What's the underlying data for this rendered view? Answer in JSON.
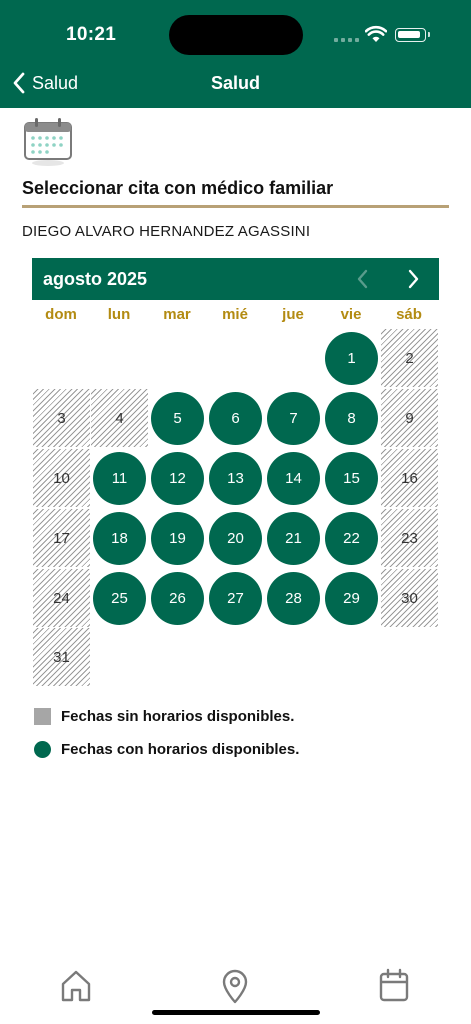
{
  "status_bar": {
    "time": "10:21"
  },
  "nav": {
    "back_label": "Salud",
    "title": "Salud"
  },
  "page": {
    "title": "Seleccionar cita con médico familiar",
    "patient_name": "DIEGO ALVARO HERNANDEZ AGASSINI"
  },
  "calendar": {
    "month_label": "agosto 2025",
    "weekdays": [
      "dom",
      "lun",
      "mar",
      "mié",
      "jue",
      "vie",
      "sáb"
    ],
    "days": [
      {
        "d": "1",
        "available": true
      },
      {
        "d": "2",
        "available": false
      },
      {
        "d": "3",
        "available": false
      },
      {
        "d": "4",
        "available": false
      },
      {
        "d": "5",
        "available": true
      },
      {
        "d": "6",
        "available": true
      },
      {
        "d": "7",
        "available": true
      },
      {
        "d": "8",
        "available": true
      },
      {
        "d": "9",
        "available": false
      },
      {
        "d": "10",
        "available": false
      },
      {
        "d": "11",
        "available": true
      },
      {
        "d": "12",
        "available": true
      },
      {
        "d": "13",
        "available": true
      },
      {
        "d": "14",
        "available": true
      },
      {
        "d": "15",
        "available": true
      },
      {
        "d": "16",
        "available": false
      },
      {
        "d": "17",
        "available": false
      },
      {
        "d": "18",
        "available": true
      },
      {
        "d": "19",
        "available": true
      },
      {
        "d": "20",
        "available": true
      },
      {
        "d": "21",
        "available": true
      },
      {
        "d": "22",
        "available": true
      },
      {
        "d": "23",
        "available": false
      },
      {
        "d": "24",
        "available": false
      },
      {
        "d": "25",
        "available": true
      },
      {
        "d": "26",
        "available": true
      },
      {
        "d": "27",
        "available": true
      },
      {
        "d": "28",
        "available": true
      },
      {
        "d": "29",
        "available": true
      },
      {
        "d": "30",
        "available": false
      },
      {
        "d": "31",
        "available": false
      }
    ]
  },
  "legend": {
    "unavailable": "Fechas sin horarios disponibles.",
    "available": "Fechas con horarios disponibles."
  },
  "tab_bar": {
    "icons": [
      "home-icon",
      "location-pin-icon",
      "calendar-icon"
    ]
  },
  "colors": {
    "primary": "#00684f",
    "accent_gold": "#b38b12",
    "rule": "#b8a176",
    "unavailable_gray": "#a6a6a6"
  }
}
